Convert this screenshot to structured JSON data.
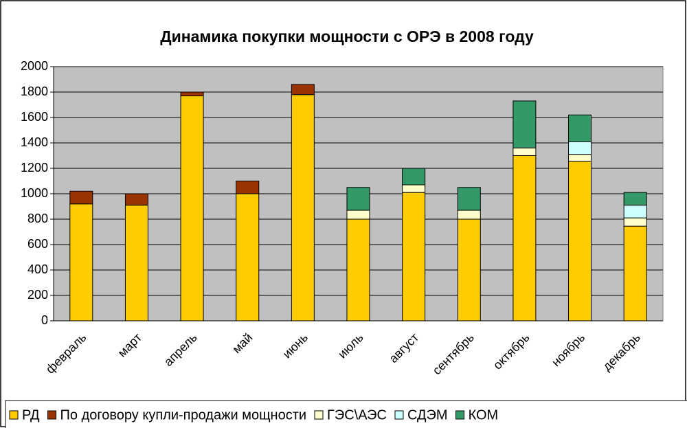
{
  "chart_data": {
    "type": "bar",
    "stacked": true,
    "title": "Динамика покупки мощности с ОРЭ в 2008 году",
    "categories": [
      "февраль",
      "март",
      "апрель",
      "май",
      "июнь",
      "июль",
      "август",
      "сентябрь",
      "октябрь",
      "ноябрь",
      "декабрь"
    ],
    "series": [
      {
        "name": "РД",
        "color": "#ffcc00",
        "values": [
          920,
          910,
          1770,
          1000,
          1780,
          800,
          1010,
          800,
          1300,
          1255,
          745
        ]
      },
      {
        "name": "По договору купли-продажи мощности",
        "color": "#993300",
        "values": [
          100,
          90,
          30,
          100,
          80,
          null,
          null,
          null,
          null,
          null,
          null
        ]
      },
      {
        "name": "ГЭС\\АЭС",
        "color": "#ffffcc",
        "values": [
          null,
          null,
          null,
          null,
          null,
          70,
          60,
          70,
          60,
          55,
          65
        ]
      },
      {
        "name": "СДЭМ",
        "color": "#ccffff",
        "values": [
          null,
          null,
          null,
          null,
          null,
          null,
          null,
          null,
          null,
          100,
          100
        ]
      },
      {
        "name": "КОМ",
        "color": "#339966",
        "values": [
          null,
          null,
          null,
          null,
          null,
          180,
          130,
          180,
          370,
          210,
          100
        ]
      }
    ],
    "ylim": [
      0,
      2000
    ],
    "yticks": [
      0,
      200,
      400,
      600,
      800,
      1000,
      1200,
      1400,
      1600,
      1800,
      2000
    ],
    "grid": true,
    "legend": "bottom"
  }
}
